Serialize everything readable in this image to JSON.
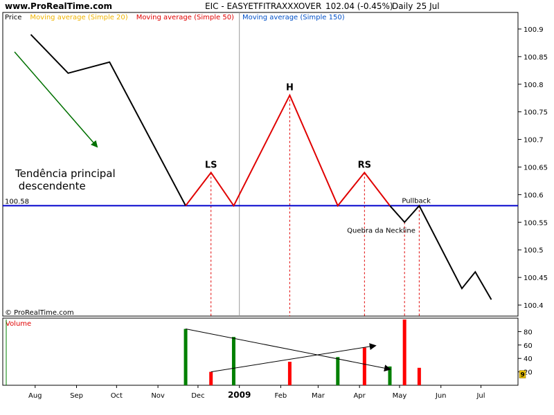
{
  "header": {
    "site": "www.ProRealTime.com",
    "symbol": "EIC - EASYETFITRAXXXOVER",
    "price": "102.04 (-0.45%)",
    "period": "Daily",
    "date": "25 Jul",
    "legend": [
      {
        "label": "Price",
        "color": "#000000"
      },
      {
        "label": "Moving average (Simple 20)",
        "color": "#f0b400"
      },
      {
        "label": "Moving average (Simple 50)",
        "color": "#e00000"
      },
      {
        "label": "Moving average (Simple 150)",
        "color": "#0050c8"
      }
    ]
  },
  "copyright": "© ProRealTime.com",
  "colors": {
    "price": "#000000",
    "pattern": "#e00000",
    "neckline": "#0000cc",
    "trend_arrow": "#007000",
    "volume_up": "#008000",
    "volume_down": "#ff0000",
    "grid": "#c8c8c8"
  },
  "chart_data": {
    "type": "line",
    "y_range": [
      100.38,
      100.93
    ],
    "y_ticks": [
      "100.9",
      "100.85",
      "100.8",
      "100.75",
      "100.7",
      "100.65",
      "100.6",
      "100.55",
      "100.5",
      "100.45",
      "100.4"
    ],
    "x_labels": [
      "Aug",
      "Sep",
      "Oct",
      "Nov",
      "Dec",
      "2009",
      "Feb",
      "Mar",
      "Apr",
      "May",
      "Jun",
      "Jul"
    ],
    "price_black": [
      {
        "x": "2008-08-05",
        "y": 100.89
      },
      {
        "x": "2008-09-02",
        "y": 100.82
      },
      {
        "x": "2008-10-03",
        "y": 100.84
      },
      {
        "x": "2008-11-29",
        "y": 100.58
      }
    ],
    "pattern_red": [
      {
        "x": "2008-11-29",
        "y": 100.58
      },
      {
        "x": "2008-12-18",
        "y": 100.64
      },
      {
        "x": "2009-01-04",
        "y": 100.58
      },
      {
        "x": "2009-02-15",
        "y": 100.78
      },
      {
        "x": "2009-03-23",
        "y": 100.58
      },
      {
        "x": "2009-04-12",
        "y": 100.64
      },
      {
        "x": "2009-05-01",
        "y": 100.58
      }
    ],
    "price_after": [
      {
        "x": "2009-05-01",
        "y": 100.58
      },
      {
        "x": "2009-05-12",
        "y": 100.55
      },
      {
        "x": "2009-05-23",
        "y": 100.58
      },
      {
        "x": "2009-06-24",
        "y": 100.43
      },
      {
        "x": "2009-07-04",
        "y": 100.46
      },
      {
        "x": "2009-07-16",
        "y": 100.41
      }
    ],
    "neckline": {
      "value": 100.58,
      "label": "100.58"
    },
    "annotations": [
      {
        "text": "LS",
        "x": "2008-12-18",
        "y": 100.64
      },
      {
        "text": "H",
        "x": "2009-02-15",
        "y": 100.78
      },
      {
        "text": "RS",
        "x": "2009-04-12",
        "y": 100.64
      },
      {
        "text": "Pullback",
        "x": "2009-05-23",
        "y": 100.58
      },
      {
        "text": "Quebra da Neckline",
        "x": "2009-05-12",
        "y": 100.55
      }
    ],
    "trend_text": [
      "Tendência principal",
      " descendente"
    ],
    "dashed_markers": [
      "2008-12-18",
      "2009-02-15",
      "2009-04-12",
      "2009-05-12",
      "2009-05-23"
    ],
    "volume": {
      "title": "Volume",
      "range": [
        0,
        100
      ],
      "ticks": [
        "80",
        "60",
        "40",
        "20"
      ],
      "bars": [
        {
          "x": "2008-11-29",
          "value": 84,
          "up": true
        },
        {
          "x": "2008-12-18",
          "value": 20,
          "up": false
        },
        {
          "x": "2009-01-04",
          "value": 72,
          "up": true
        },
        {
          "x": "2009-02-15",
          "value": 35,
          "up": false
        },
        {
          "x": "2009-03-23",
          "value": 42,
          "up": true
        },
        {
          "x": "2009-04-12",
          "value": 56,
          "up": false
        },
        {
          "x": "2009-05-01",
          "value": 28,
          "up": true
        },
        {
          "x": "2009-05-12",
          "value": 98,
          "up": false
        },
        {
          "x": "2009-05-23",
          "value": 26,
          "up": false
        }
      ],
      "last_value": "9",
      "arrows": [
        {
          "from": {
            "x": "2008-11-29",
            "y": 84
          },
          "to": {
            "x": "2009-05-01",
            "y": 24
          }
        },
        {
          "from": {
            "x": "2008-12-18",
            "y": 20
          },
          "to": {
            "x": "2009-04-20",
            "y": 59
          }
        }
      ]
    }
  }
}
